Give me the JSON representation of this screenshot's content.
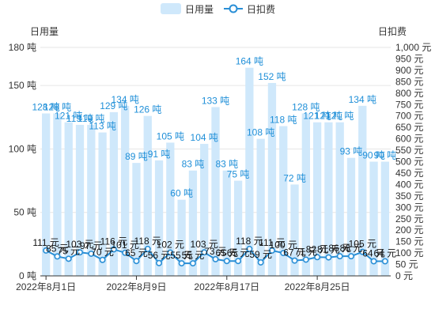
{
  "chart_data": {
    "type": "bar",
    "legend": {
      "items": [
        {
          "name": "日用量",
          "kind": "bar",
          "color": "#cfe8fb"
        },
        {
          "name": "日扣费",
          "kind": "line",
          "color": "#2a8fd6"
        }
      ],
      "placement": "top-center"
    },
    "y_left": {
      "name": "日用量",
      "range": [
        0,
        180
      ],
      "ticks": [
        0,
        50,
        100,
        150,
        180
      ],
      "unit": "吨"
    },
    "y_right": {
      "name": "日扣费",
      "range": [
        0,
        1000
      ],
      "step": 50,
      "unit": "元"
    },
    "x_tick_labels": [
      "2022年8月1日",
      "2022年8月9日",
      "2022年8月17日",
      "2022年8月25日"
    ],
    "x_tick_indices": [
      0,
      8,
      16,
      24
    ],
    "categories": [
      "2022-08-01",
      "2022-08-02",
      "2022-08-03",
      "2022-08-04",
      "2022-08-05",
      "2022-08-06",
      "2022-08-07",
      "2022-08-08",
      "2022-08-09",
      "2022-08-10",
      "2022-08-11",
      "2022-08-12",
      "2022-08-13",
      "2022-08-14",
      "2022-08-15",
      "2022-08-16",
      "2022-08-17",
      "2022-08-18",
      "2022-08-19",
      "2022-08-20",
      "2022-08-21",
      "2022-08-22",
      "2022-08-23",
      "2022-08-24",
      "2022-08-25",
      "2022-08-26",
      "2022-08-27",
      "2022-08-28",
      "2022-08-29",
      "2022-08-30",
      "2022-08-31"
    ],
    "series": [
      {
        "name": "日用量",
        "axis": "left",
        "unit": "吨",
        "values": [
          128,
          128,
          121,
          119,
          119,
          113,
          129,
          134,
          89,
          126,
          91,
          105,
          60,
          83,
          104,
          133,
          83,
          75,
          164,
          108,
          152,
          118,
          72,
          128,
          121,
          121,
          121,
          93,
          134,
          90,
          90
        ]
      },
      {
        "name": "日扣费",
        "axis": "right",
        "unit": "元",
        "values": [
          111,
          85,
          75,
          103,
          97,
          70,
          116,
          101,
          65,
          118,
          56,
          102,
          55,
          55,
          103,
          73,
          65,
          65,
          118,
          59,
          111,
          100,
          67,
          71,
          82,
          81,
          86,
          86,
          105,
          64,
          64
        ]
      }
    ],
    "grid": true
  },
  "colors": {
    "bar": "#cfe8fb",
    "line": "#2a8fd6",
    "bar_label": "#1f8fd8",
    "line_label": "#111111",
    "axis": "#333333"
  }
}
